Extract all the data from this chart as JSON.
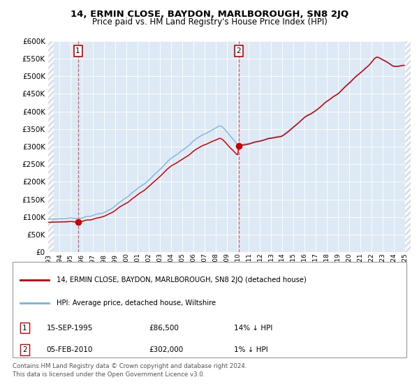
{
  "title": "14, ERMIN CLOSE, BAYDON, MARLBOROUGH, SN8 2JQ",
  "subtitle": "Price paid vs. HM Land Registry's House Price Index (HPI)",
  "sale1_date": "15-SEP-1995",
  "sale1_price": 86500,
  "sale2_date": "05-FEB-2010",
  "sale2_price": 302000,
  "legend_line1": "14, ERMIN CLOSE, BAYDON, MARLBOROUGH, SN8 2JQ (detached house)",
  "legend_line2": "HPI: Average price, detached house, Wiltshire",
  "table_row1": [
    "1",
    "15-SEP-1995",
    "£86,500",
    "14% ↓ HPI"
  ],
  "table_row2": [
    "2",
    "05-FEB-2010",
    "£302,000",
    "1% ↓ HPI"
  ],
  "footer": "Contains HM Land Registry data © Crown copyright and database right 2024.\nThis data is licensed under the Open Government Licence v3.0.",
  "hpi_color": "#7ab3d8",
  "price_color": "#cc0000",
  "bg_color": "#ddeaf6",
  "grid_color": "#ffffff",
  "ylim": [
    0,
    600000
  ],
  "yticks": [
    0,
    50000,
    100000,
    150000,
    200000,
    250000,
    300000,
    350000,
    400000,
    450000,
    500000,
    550000,
    600000
  ]
}
